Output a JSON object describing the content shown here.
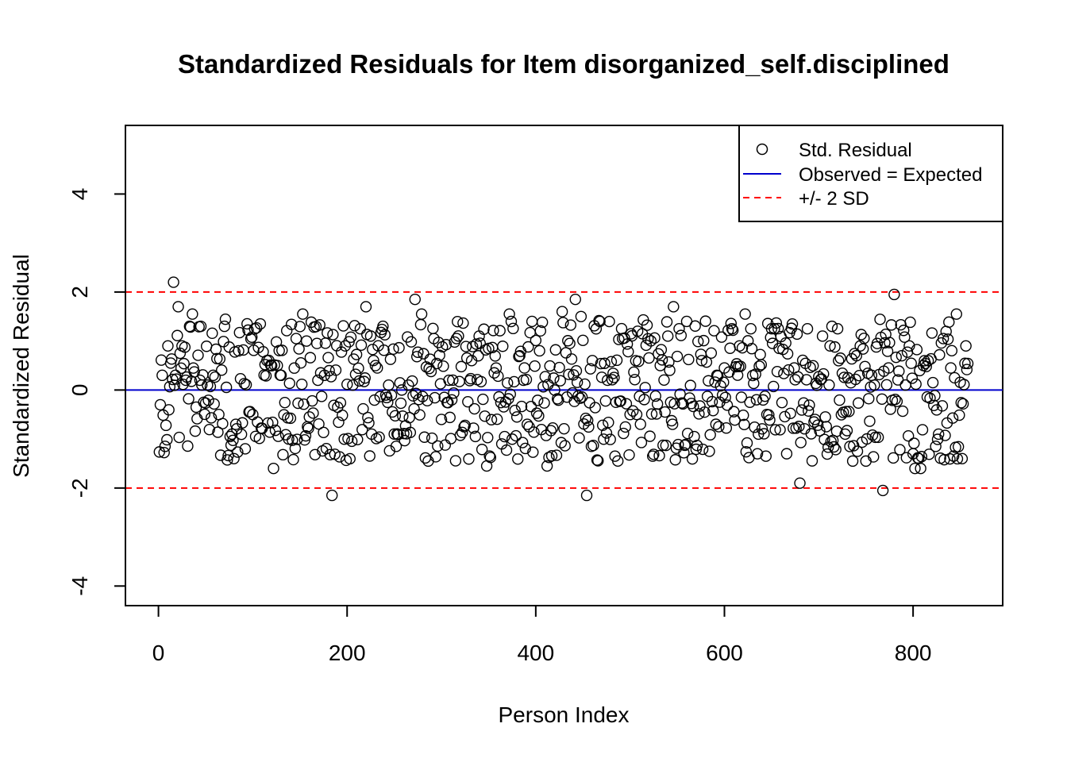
{
  "chart_data": {
    "type": "scatter",
    "title": "Standardized Residuals for Item disorganized_self.disciplined",
    "xlabel": "Person Index",
    "ylabel": "Standardized Residual",
    "xlim": [
      -35,
      895
    ],
    "ylim": [
      -4.4,
      5.4
    ],
    "xticks": [
      0,
      200,
      400,
      600,
      800
    ],
    "yticks": [
      -4,
      -2,
      0,
      2,
      4
    ],
    "xtick_labels": [
      "0",
      "200",
      "400",
      "600",
      "800"
    ],
    "ytick_labels": [
      "-4",
      "-2",
      "0",
      "2",
      "4"
    ],
    "grid": false,
    "legend_position": "top-right",
    "legend": [
      {
        "label": "Std. Residual",
        "kind": "point",
        "color": "#000000"
      },
      {
        "label": "Observed = Expected",
        "kind": "line",
        "color": "#0000cd"
      },
      {
        "label": "+/- 2 SD",
        "kind": "dashed",
        "color": "#ff0000"
      }
    ],
    "reference_lines": [
      {
        "y": 0,
        "color": "#0000cd",
        "style": "solid"
      },
      {
        "y": 2,
        "color": "#ff0000",
        "style": "dashed"
      },
      {
        "y": -2,
        "color": "#ff0000",
        "style": "dashed"
      }
    ],
    "series": [
      {
        "name": "Std. Residual",
        "color": "#000000",
        "n_points": 858,
        "x": [
          2,
          4,
          7,
          10,
          13,
          16,
          18,
          21,
          25,
          29,
          33,
          36,
          40,
          44,
          48,
          52,
          58,
          64,
          70,
          78,
          85,
          92,
          100,
          108,
          115,
          122,
          130,
          138,
          146,
          153,
          160,
          168,
          176,
          184,
          190,
          198,
          206,
          214,
          220,
          226,
          232,
          238,
          244,
          252,
          258,
          265,
          272,
          279,
          286,
          292,
          300,
          308,
          316,
          324,
          332,
          340,
          348,
          356,
          364,
          372,
          380,
          388,
          396,
          404,
          412,
          420,
          428,
          436,
          442,
          448,
          454,
          460,
          468,
          476,
          484,
          492,
          500,
          508,
          516,
          524,
          532,
          540,
          546,
          552,
          560,
          568,
          576,
          584,
          592,
          600,
          608,
          616,
          622,
          628,
          636,
          644,
          650,
          658,
          666,
          674,
          680,
          688,
          696,
          704,
          712,
          720,
          728,
          736,
          744,
          750,
          756,
          762,
          768,
          774,
          780,
          788,
          796,
          802,
          808,
          816,
          824,
          832,
          840,
          846,
          852,
          856
        ],
        "y": [
          -0.3,
          0.3,
          -1.15,
          0.9,
          0.55,
          2.2,
          0.3,
          1.7,
          0.9,
          0.2,
          1.3,
          1.55,
          -0.35,
          0.2,
          -0.25,
          0.1,
          0.3,
          -0.5,
          1.3,
          -0.9,
          0.8,
          -1.2,
          -0.5,
          1.35,
          0.6,
          -1.6,
          0.3,
          -1.0,
          1.05,
          1.55,
          -0.55,
          0.95,
          0.3,
          -2.15,
          -0.35,
          0.9,
          0.1,
          1.25,
          1.7,
          -0.9,
          0.45,
          1.3,
          0.1,
          -1.15,
          0.0,
          0.1,
          1.85,
          1.55,
          -1.45,
          1.05,
          -0.6,
          0.2,
          1.05,
          -0.75,
          0.6,
          1.1,
          -1.55,
          0.35,
          -1.1,
          1.55,
          -0.55,
          0.45,
          1.4,
          0.8,
          -1.55,
          0.0,
          1.6,
          0.95,
          1.85,
          1.5,
          -2.15,
          0.6,
          1.4,
          0.2,
          -1.35,
          1.05,
          -0.5,
          1.2,
          0.05,
          -1.35,
          0.5,
          1.1,
          1.7,
          1.25,
          1.4,
          -0.95,
          0.6,
          -1.25,
          0.3,
          0.45,
          1.25,
          0.9,
          1.55,
          1.25,
          -0.9,
          -1.35,
          1.25,
          0.85,
          -1.3,
          0.45,
          -1.9,
          1.25,
          -0.6,
          1.1,
          0.9,
          1.25,
          -0.9,
          -1.45,
          0.9,
          -1.45,
          0.3,
          0.95,
          -2.05,
          0.45,
          1.95,
          0.7,
          0.9,
          -1.6,
          -1.6,
          0.6,
          -1.15,
          1.05,
          0.45,
          1.55,
          -1.4,
          0.9
        ]
      }
    ]
  }
}
